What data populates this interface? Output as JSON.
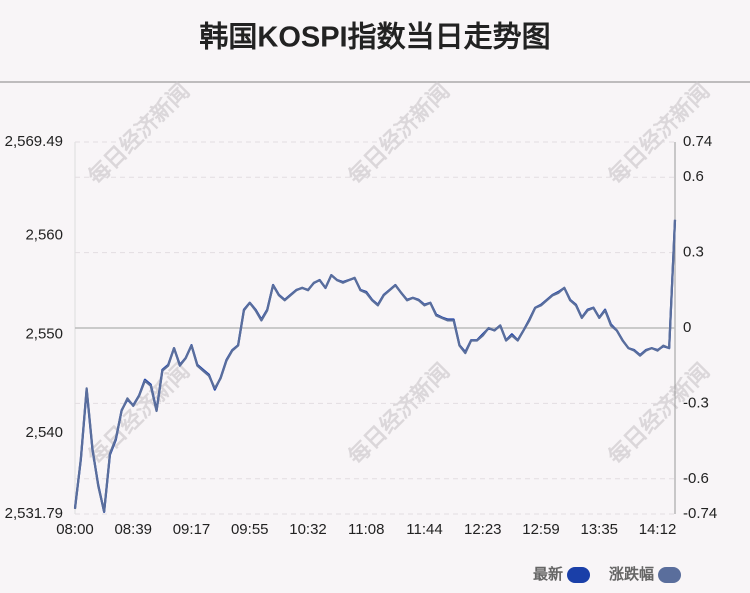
{
  "chart_data": {
    "type": "line",
    "title": "韩国KOSPI指数当日走势图",
    "watermark": "每日经济新闻",
    "categories": [
      "08:00",
      null,
      null,
      null,
      null,
      null,
      null,
      null,
      null,
      null,
      "08:39",
      null,
      null,
      null,
      null,
      null,
      null,
      null,
      null,
      null,
      "09:17",
      null,
      null,
      null,
      null,
      null,
      null,
      null,
      null,
      null,
      "09:55",
      null,
      null,
      null,
      null,
      null,
      null,
      null,
      null,
      null,
      "10:32",
      null,
      null,
      null,
      null,
      null,
      null,
      null,
      null,
      null,
      "11:08",
      null,
      null,
      null,
      null,
      null,
      null,
      null,
      null,
      null,
      "11:44",
      null,
      null,
      null,
      null,
      null,
      null,
      null,
      null,
      null,
      "12:23",
      null,
      null,
      null,
      null,
      null,
      null,
      null,
      null,
      null,
      "12:59",
      null,
      null,
      null,
      null,
      null,
      null,
      null,
      null,
      null,
      "13:35",
      null,
      null,
      null,
      null,
      null,
      null,
      null,
      null,
      null,
      "14:12",
      null,
      null,
      null
    ],
    "series": [
      {
        "name": "最新",
        "color": "#1a3fa8",
        "values": [
          2532.4,
          2537.3,
          2544.4,
          2538.3,
          2534.7,
          2532.0,
          2537.8,
          2539.3,
          2542.3,
          2543.4,
          2542.8,
          2543.8,
          2545.4,
          2544.9,
          2542.3,
          2546.4,
          2546.9,
          2548.6,
          2546.9,
          2547.6,
          2548.9,
          2546.9,
          2546.4,
          2545.9,
          2544.4,
          2545.6,
          2547.4,
          2548.4,
          2548.9,
          2552.5,
          2553.2,
          2552.5,
          2551.5,
          2552.5,
          2555.0,
          2554.0,
          2553.5,
          2554.0,
          2554.5,
          2554.7,
          2554.5,
          2555.2,
          2555.5,
          2554.7,
          2556.0,
          2555.5,
          2555.3,
          2555.5,
          2555.7,
          2554.5,
          2554.3,
          2553.5,
          2553.0,
          2554.0,
          2554.5,
          2555.0,
          2554.2,
          2553.5,
          2553.7,
          2553.5,
          2553.0,
          2553.2,
          2552.0,
          2551.7,
          2551.5,
          2551.5,
          2548.9,
          2548.2,
          2549.4,
          2549.4,
          2550.0,
          2550.6,
          2550.4,
          2550.9,
          2549.4,
          2550.0,
          2549.4,
          2550.4,
          2551.5,
          2552.7,
          2553.0,
          2553.5,
          2554.0,
          2554.3,
          2554.7,
          2553.5,
          2553.0,
          2551.7,
          2552.5,
          2552.7,
          2551.7,
          2552.5,
          2551.0,
          2550.4,
          2549.4,
          2548.6,
          2548.4,
          2547.9,
          2548.4,
          2548.6,
          2548.4,
          2548.8,
          2548.6,
          2561.6
        ]
      },
      {
        "name": "涨跌幅",
        "color": "#5a6e9c",
        "axis": "y2",
        "values": [
          -0.72,
          -0.52,
          -0.24,
          -0.48,
          -0.63,
          -0.73,
          -0.5,
          -0.44,
          -0.33,
          -0.28,
          -0.31,
          -0.27,
          -0.21,
          -0.23,
          -0.33,
          -0.17,
          -0.15,
          -0.08,
          -0.15,
          -0.12,
          -0.07,
          -0.15,
          -0.17,
          -0.19,
          -0.24,
          -0.2,
          -0.13,
          -0.09,
          -0.07,
          0.07,
          0.1,
          0.07,
          0.03,
          0.07,
          0.17,
          0.13,
          0.11,
          0.13,
          0.15,
          0.16,
          0.15,
          0.18,
          0.19,
          0.16,
          0.21,
          0.19,
          0.18,
          0.19,
          0.2,
          0.15,
          0.14,
          0.11,
          0.09,
          0.13,
          0.15,
          0.17,
          0.14,
          0.11,
          0.12,
          0.11,
          0.09,
          0.1,
          0.05,
          0.04,
          0.03,
          0.03,
          -0.07,
          -0.1,
          -0.05,
          -0.05,
          -0.03,
          0,
          -0.01,
          0.01,
          -0.05,
          -0.03,
          -0.05,
          -0.01,
          0.03,
          0.08,
          0.09,
          0.11,
          0.13,
          0.14,
          0.16,
          0.11,
          0.09,
          0.04,
          0.07,
          0.08,
          0.04,
          0.07,
          0.01,
          -0.01,
          -0.05,
          -0.08,
          -0.09,
          -0.11,
          -0.09,
          -0.08,
          -0.09,
          -0.07,
          -0.08,
          0.43
        ]
      }
    ],
    "ylim": [
      2531.79,
      2569.49
    ],
    "yticks": [
      {
        "value": 2569.49,
        "label": "2,569.49"
      },
      {
        "value": 2560,
        "label": "2,560"
      },
      {
        "value": 2550,
        "label": "2,550"
      },
      {
        "value": 2540,
        "label": "2,540"
      },
      {
        "value": 2531.79,
        "label": "2,531.79"
      }
    ],
    "y2lim": [
      -0.74,
      0.74
    ],
    "y2ticks": [
      0.74,
      0.6,
      0.3,
      0,
      -0.3,
      -0.6,
      -0.74
    ],
    "grid": true
  }
}
